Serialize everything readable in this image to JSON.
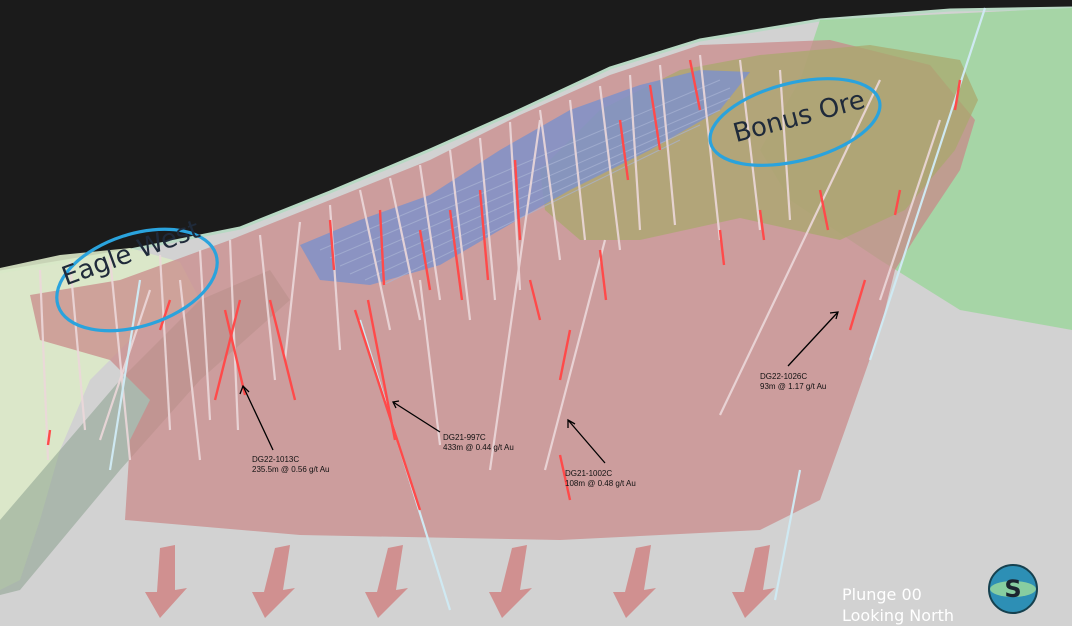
{
  "zones": [
    {
      "name": "Eagle West"
    },
    {
      "name": "Bonus Ore"
    }
  ],
  "drill_intercepts": [
    {
      "hole": "DG22-1013C",
      "intercept": "235.5m @ 0.56 g/t Au"
    },
    {
      "hole": "DG21-997C",
      "intercept": "433m @ 0.44 g/t Au"
    },
    {
      "hole": "DG21-1002C",
      "intercept": "108m @ 0.48 g/t Au"
    },
    {
      "hole": "DG22-1026C",
      "intercept": "93m @ 1.17 g/t Au"
    }
  ],
  "view": {
    "plunge": "Plunge 00",
    "direction": "Looking North"
  },
  "logo": {
    "letter": "S"
  },
  "colors": {
    "sky": "#1b1b1b",
    "ground": "#d2d2d2",
    "mineralized_envelope": "#c98888",
    "green_zone": "#9fd69f",
    "blue_zone": "#7f92c9",
    "grade_intercepts": "#ff4a4a",
    "drill_traces": "#ecd8da",
    "zone_outline": "#2aa3dd",
    "plunge_arrows": "#cf8888"
  }
}
